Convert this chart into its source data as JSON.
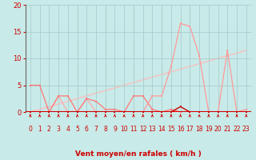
{
  "bg_color": "#c8eae8",
  "grid_color": "#a8cece",
  "xlabel": "Vent moyen/en rafales ( km/h )",
  "xlim": [
    -0.5,
    23.5
  ],
  "ylim": [
    0,
    20
  ],
  "yticks": [
    0,
    5,
    10,
    15,
    20
  ],
  "xticks": [
    0,
    1,
    2,
    3,
    4,
    5,
    6,
    7,
    8,
    9,
    10,
    11,
    12,
    13,
    14,
    15,
    16,
    17,
    18,
    19,
    20,
    21,
    22,
    23
  ],
  "x_all": [
    0,
    1,
    2,
    3,
    4,
    5,
    6,
    7,
    8,
    9,
    10,
    11,
    12,
    13,
    14,
    15,
    16,
    17,
    18,
    19,
    20,
    21,
    22,
    23
  ],
  "series": [
    {
      "y": [
        0,
        0,
        0,
        0,
        0,
        0,
        0,
        0,
        0,
        0,
        0,
        0,
        0,
        0,
        0,
        0,
        1,
        0,
        0,
        0,
        0,
        0,
        0,
        0
      ],
      "color": "#cc0000",
      "lw": 1.0,
      "ms": 2.0,
      "zorder": 8
    },
    {
      "y": [
        5,
        5,
        0,
        3,
        3,
        0,
        2.5,
        2,
        0.5,
        0.5,
        0,
        3,
        3,
        0.5,
        0,
        0.5,
        0,
        0,
        0,
        0,
        0,
        0,
        0,
        0
      ],
      "color": "#ff7777",
      "lw": 0.9,
      "ms": 2.0,
      "zorder": 5
    },
    {
      "y": [
        0,
        0,
        0,
        3,
        0,
        0,
        2.5,
        0,
        0,
        0,
        0,
        0,
        0,
        0,
        0,
        0,
        0,
        0,
        0,
        0,
        0,
        0,
        0,
        0
      ],
      "color": "#ffaaaa",
      "lw": 0.9,
      "ms": 2.0,
      "zorder": 4
    },
    {
      "y": [
        0,
        0,
        0,
        0,
        0,
        0,
        0,
        0,
        0,
        0,
        0,
        0,
        0,
        3,
        3,
        8.5,
        16.5,
        16,
        10.5,
        0,
        0,
        11.5,
        0,
        0.5
      ],
      "color": "#ff9999",
      "lw": 0.9,
      "ms": 2.0,
      "zorder": 6
    }
  ],
  "trend_x": [
    0,
    23
  ],
  "trend_y": [
    0,
    11.5
  ],
  "trend_color": "#ffbbbb",
  "trend_lw": 0.9,
  "hline_color": "#dd0000",
  "hline_lw": 1.5,
  "arrow_color": "#cc0000",
  "tick_color": "#cc0000",
  "label_color": "#cc0000",
  "spine_left_color": "#666666",
  "xlabel_fontsize": 6.5,
  "xlabel_bold": true,
  "ytick_fontsize": 6.0,
  "xtick_fontsize": 5.5
}
